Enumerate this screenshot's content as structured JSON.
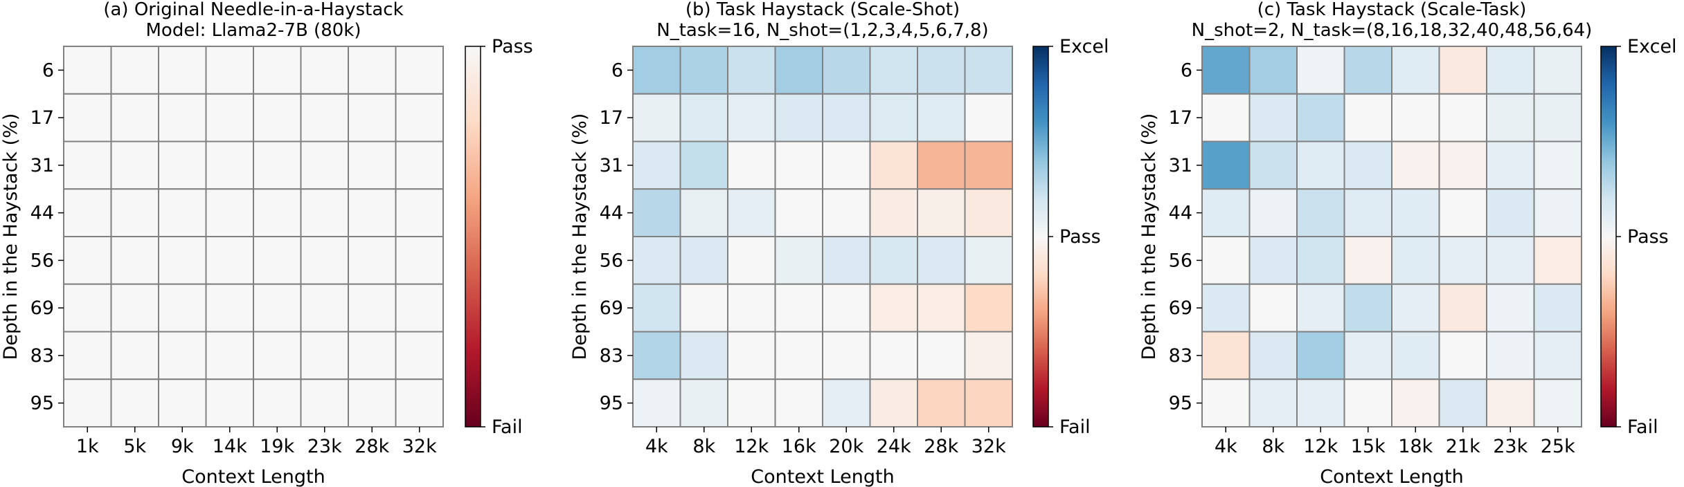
{
  "chart_data": [
    {
      "type": "heatmap",
      "title_lines": [
        "(a) Original Needle-in-a-Haystack",
        "Model: Llama2-7B (80k)"
      ],
      "xlabel": "Context Length",
      "ylabel": "Depth in the Haystack (%)",
      "x_categories": [
        "1k",
        "5k",
        "9k",
        "14k",
        "19k",
        "23k",
        "28k",
        "32k"
      ],
      "y_categories": [
        "6",
        "17",
        "31",
        "44",
        "56",
        "69",
        "83",
        "95"
      ],
      "value_range": [
        -1,
        0
      ],
      "values": [
        [
          0,
          0,
          0,
          0,
          0,
          0,
          0,
          0
        ],
        [
          0,
          0,
          0,
          0,
          0,
          0,
          0,
          0
        ],
        [
          0,
          0,
          0,
          0,
          0,
          0,
          0,
          0
        ],
        [
          0,
          0,
          0,
          0,
          0,
          0,
          0,
          0
        ],
        [
          0,
          0,
          0,
          0,
          0,
          0,
          0,
          0
        ],
        [
          0,
          0,
          0,
          0,
          0,
          0,
          0,
          0
        ],
        [
          0,
          0,
          0,
          0,
          0,
          0,
          0,
          0
        ],
        [
          0,
          0,
          0,
          0,
          0,
          0,
          0,
          0
        ]
      ],
      "colorbar": {
        "ticks": [
          {
            "label": "Pass",
            "value": 0
          },
          {
            "label": "Fail",
            "value": -1
          }
        ]
      }
    },
    {
      "type": "heatmap",
      "title_lines": [
        "(b) Task Haystack (Scale-Shot)",
        "N_task=16, N_shot=(1,2,3,4,5,6,7,8)"
      ],
      "xlabel": "Context Length",
      "ylabel": "Depth in the Haystack (%)",
      "x_categories": [
        "4k",
        "8k",
        "12k",
        "16k",
        "20k",
        "24k",
        "28k",
        "32k"
      ],
      "y_categories": [
        "6",
        "17",
        "31",
        "44",
        "56",
        "69",
        "83",
        "95"
      ],
      "value_range": [
        -1,
        1
      ],
      "values": [
        [
          0.35,
          0.32,
          0.22,
          0.35,
          0.28,
          0.2,
          0.22,
          0.22
        ],
        [
          0.08,
          0.14,
          0.1,
          0.15,
          0.15,
          0.14,
          0.12,
          0.0
        ],
        [
          0.15,
          0.24,
          0.0,
          0.0,
          0.0,
          -0.14,
          -0.34,
          -0.34
        ],
        [
          0.28,
          0.08,
          0.1,
          0.0,
          0.0,
          -0.08,
          -0.06,
          -0.1
        ],
        [
          0.15,
          0.15,
          0.0,
          0.08,
          0.15,
          0.17,
          0.15,
          0.08
        ],
        [
          0.2,
          0.0,
          0.0,
          0.0,
          0.0,
          -0.07,
          -0.07,
          -0.2
        ],
        [
          0.3,
          0.15,
          0.0,
          0.0,
          0.0,
          0.0,
          0.0,
          -0.05
        ],
        [
          0.06,
          0.08,
          0.0,
          0.0,
          0.1,
          -0.08,
          -0.22,
          -0.22
        ]
      ],
      "colorbar": {
        "ticks": [
          {
            "label": "Excel",
            "value": 1
          },
          {
            "label": "Pass",
            "value": 0
          },
          {
            "label": "Fail",
            "value": -1
          }
        ]
      }
    },
    {
      "type": "heatmap",
      "title_lines": [
        "(c) Task Haystack (Scale-Task)",
        "N_shot=2, N_task=(8,16,18,32,40,48,56,64)"
      ],
      "xlabel": "Context Length",
      "ylabel": "Depth in the Haystack (%)",
      "x_categories": [
        "4k",
        "8k",
        "12k",
        "15k",
        "18k",
        "21k",
        "23k",
        "25k"
      ],
      "y_categories": [
        "6",
        "17",
        "31",
        "44",
        "56",
        "69",
        "83",
        "95"
      ],
      "value_range": [
        -1,
        1
      ],
      "values": [
        [
          0.52,
          0.35,
          0.05,
          0.28,
          0.12,
          -0.1,
          0.12,
          0.08
        ],
        [
          0.0,
          0.15,
          0.25,
          0.0,
          0.0,
          0.0,
          0.08,
          0.08
        ],
        [
          0.55,
          0.22,
          0.12,
          0.15,
          -0.04,
          -0.04,
          0.1,
          0.05
        ],
        [
          0.12,
          0.06,
          0.22,
          0.12,
          0.12,
          0.0,
          0.15,
          0.06
        ],
        [
          0.0,
          0.15,
          0.2,
          -0.04,
          0.12,
          0.1,
          0.1,
          -0.07
        ],
        [
          0.15,
          0.0,
          0.1,
          0.25,
          0.1,
          -0.1,
          0.06,
          0.15
        ],
        [
          -0.14,
          0.15,
          0.35,
          0.1,
          0.12,
          0.0,
          0.06,
          0.1
        ],
        [
          0.0,
          0.1,
          0.1,
          0.0,
          -0.04,
          0.15,
          -0.05,
          0.05
        ]
      ],
      "colorbar": {
        "ticks": [
          {
            "label": "Excel",
            "value": 1
          },
          {
            "label": "Pass",
            "value": 0
          },
          {
            "label": "Fail",
            "value": -1
          }
        ]
      }
    }
  ]
}
